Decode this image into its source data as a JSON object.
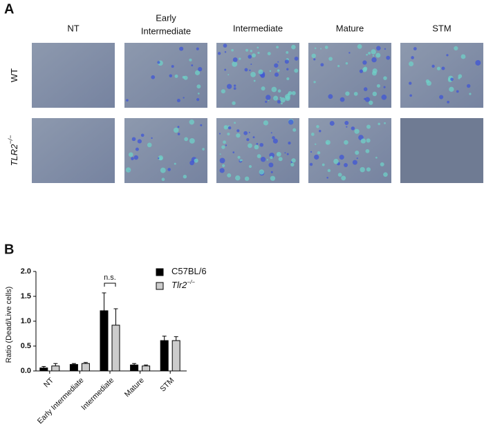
{
  "panel_a": {
    "label": "A",
    "columns": [
      [
        "NT"
      ],
      [
        "Early",
        "Intermediate"
      ],
      [
        "Intermediate"
      ],
      [
        "Mature"
      ],
      [
        "STM"
      ]
    ],
    "rows": [
      {
        "label": "WT"
      },
      {
        "label": "TLR2",
        "superscript": "−/−"
      }
    ]
  },
  "chart_data": {
    "type": "bar",
    "panel_label": "B",
    "y_label": "Ratio (Dead/Live cells)",
    "categories": [
      "NT",
      "Early Intermediate",
      "Intermediate",
      "Mature",
      "STM"
    ],
    "series": [
      {
        "name": "C57BL/6",
        "color": "#000000",
        "values": [
          0.06,
          0.13,
          1.21,
          0.12,
          0.61
        ],
        "errors": [
          0.03,
          0.02,
          0.36,
          0.03,
          0.09
        ]
      },
      {
        "name": "Tlr2",
        "name_superscript": "−/−",
        "color": "#cccccc",
        "values": [
          0.1,
          0.15,
          0.92,
          0.1,
          0.61
        ],
        "errors": [
          0.05,
          0.02,
          0.33,
          0.02,
          0.08
        ]
      }
    ],
    "ylim": [
      0,
      2.0
    ],
    "yticks": [
      {
        "value": 0,
        "label": "0.0"
      },
      {
        "value": 0.5,
        "label": "0.5"
      },
      {
        "value": 1.0,
        "label": "1.0"
      },
      {
        "value": 1.5,
        "label": "1.5"
      },
      {
        "value": 2.0,
        "label": "2.0"
      }
    ],
    "annotations": [
      {
        "text": "n.s.",
        "category": 2
      }
    ],
    "legend": "top-right"
  }
}
